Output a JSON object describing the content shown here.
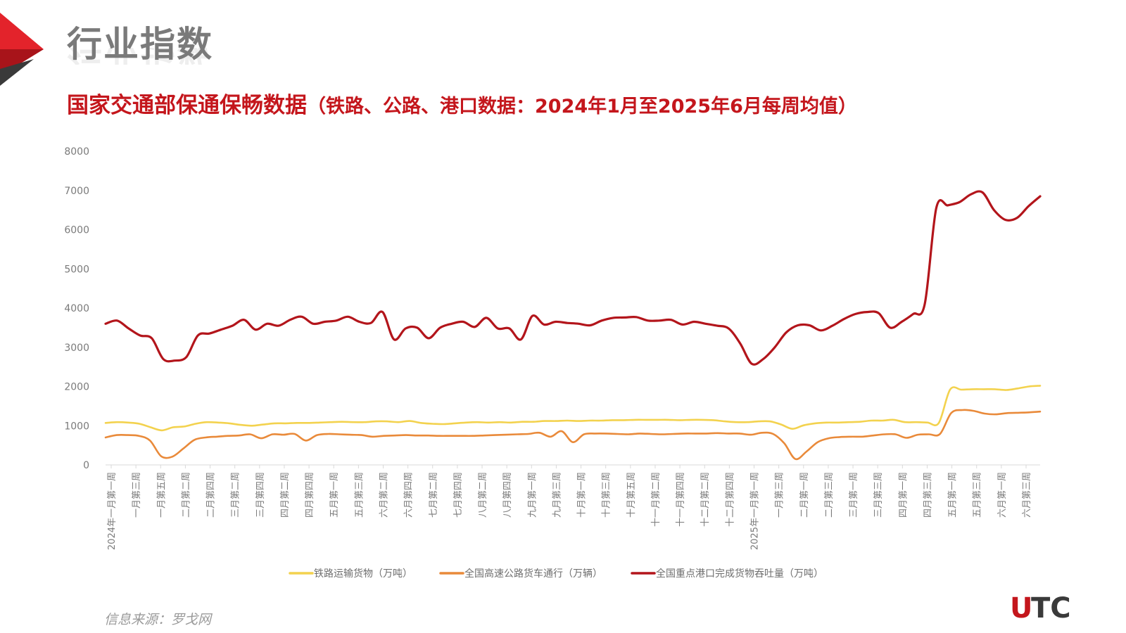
{
  "header": {
    "title": "行业指数",
    "subtitle_main": "国家交通部保通保畅数据",
    "subtitle_paren": "（铁路、公路、港口数据：2024年1月至2025年6月每周均值）"
  },
  "footer": {
    "source": "信息来源：罗戈网",
    "logo_text": "UTC"
  },
  "colors": {
    "accent_red": "#c4161c",
    "rail": "#f3d24e",
    "highway": "#e98a3a",
    "port": "#b3151b",
    "axis_text": "#7a7a7a",
    "grid": "#d9d9d9"
  },
  "chart_data": {
    "type": "line",
    "ylim": [
      0,
      8000
    ],
    "yticks": [
      "0",
      "1000",
      "2000",
      "3000",
      "4000",
      "5000",
      "6000",
      "7000",
      "8000"
    ],
    "x_tick_labels": [
      "2024年一月第一周",
      "一月第三周",
      "一月第五周",
      "二月第二周",
      "二月第四周",
      "三月第二周",
      "三月第四周",
      "四月第二周",
      "四月第四周",
      "五月第一周",
      "五月第三周",
      "六月第二周",
      "六月第四周",
      "七月第二周",
      "七月第四周",
      "八月第二周",
      "八月第四周",
      "九月第一周",
      "九月第三周",
      "十月第一周",
      "十月第三周",
      "十月第五周",
      "十一月第二周",
      "十一月第四周",
      "十二月第二周",
      "十二月第四周",
      "2025年一月第一周",
      "一月第三周",
      "二月第一周",
      "二月第三周",
      "三月第一周",
      "三月第三周",
      "四月第一周",
      "四月第三周",
      "五月第一周",
      "五月第三周",
      "六月第一周",
      "六月第三周"
    ],
    "legend_position": "bottom",
    "series": [
      {
        "name": "铁路运输货物（万吨）",
        "color": "#f3d24e",
        "values": [
          1070,
          1090,
          1080,
          1050,
          960,
          880,
          960,
          980,
          1050,
          1090,
          1080,
          1060,
          1020,
          1000,
          1030,
          1060,
          1060,
          1070,
          1070,
          1080,
          1090,
          1100,
          1090,
          1090,
          1110,
          1110,
          1090,
          1120,
          1070,
          1050,
          1040,
          1060,
          1080,
          1090,
          1080,
          1090,
          1080,
          1100,
          1100,
          1120,
          1120,
          1130,
          1120,
          1130,
          1130,
          1140,
          1140,
          1150,
          1150,
          1150,
          1150,
          1140,
          1150,
          1150,
          1140,
          1110,
          1090,
          1090,
          1110,
          1110,
          1030,
          920,
          1010,
          1060,
          1080,
          1080,
          1090,
          1100,
          1130,
          1130,
          1150,
          1090,
          1090,
          1080,
          1070,
          1920,
          1920,
          1930,
          1930,
          1930,
          1910,
          1950,
          2000,
          2020
        ]
      },
      {
        "name": "全国高速公路货车通行（万辆）",
        "color": "#e98a3a",
        "values": [
          700,
          760,
          760,
          740,
          620,
          220,
          210,
          420,
          640,
          700,
          720,
          740,
          750,
          780,
          680,
          780,
          770,
          790,
          620,
          760,
          790,
          780,
          770,
          760,
          720,
          740,
          750,
          760,
          750,
          750,
          740,
          740,
          740,
          740,
          750,
          760,
          770,
          780,
          790,
          820,
          720,
          860,
          580,
          780,
          800,
          800,
          790,
          780,
          800,
          790,
          780,
          790,
          800,
          800,
          800,
          810,
          800,
          800,
          770,
          820,
          790,
          550,
          150,
          340,
          580,
          680,
          710,
          720,
          720,
          750,
          780,
          780,
          690,
          770,
          780,
          790,
          1320,
          1400,
          1380,
          1310,
          1290,
          1320,
          1330,
          1340,
          1360
        ]
      },
      {
        "name": "全国重点港口完成货物吞吐量（万吨）",
        "color": "#b3151b",
        "values": [
          3600,
          3680,
          3480,
          3300,
          3230,
          2700,
          2660,
          2750,
          3300,
          3350,
          3450,
          3550,
          3700,
          3450,
          3600,
          3550,
          3700,
          3780,
          3600,
          3650,
          3680,
          3780,
          3650,
          3620,
          3900,
          3200,
          3480,
          3500,
          3230,
          3500,
          3600,
          3650,
          3520,
          3750,
          3480,
          3480,
          3200,
          3800,
          3580,
          3650,
          3620,
          3600,
          3560,
          3680,
          3750,
          3760,
          3770,
          3680,
          3680,
          3700,
          3580,
          3650,
          3600,
          3550,
          3480,
          3100,
          2580,
          2700,
          3000,
          3380,
          3560,
          3560,
          3430,
          3550,
          3720,
          3850,
          3900,
          3870,
          3500,
          3650,
          3850,
          4100,
          6550,
          6620,
          6700,
          6900,
          6950,
          6500,
          6250,
          6300,
          6600,
          6850
        ]
      }
    ]
  }
}
